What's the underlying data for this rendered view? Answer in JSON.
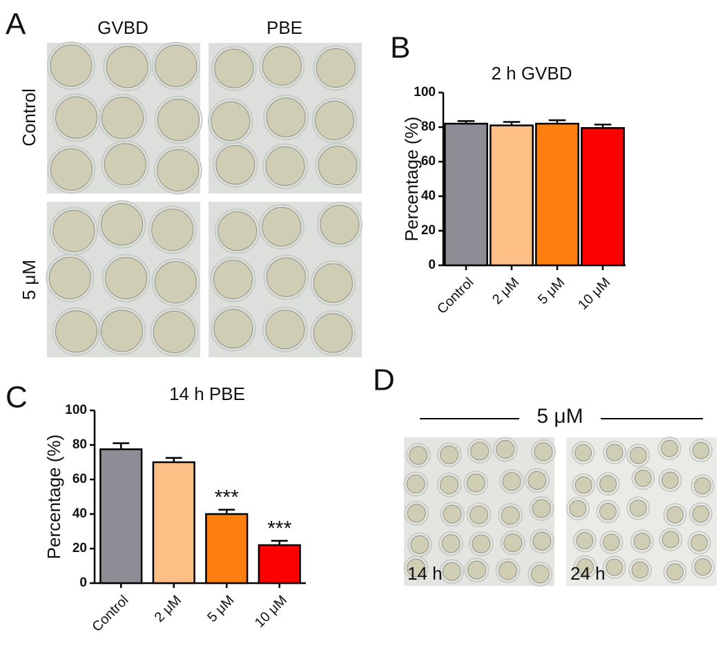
{
  "panels": {
    "A": {
      "letter": "A",
      "columns": [
        "GVBD",
        "PBE"
      ],
      "rows": [
        "Control",
        "5 μM"
      ]
    },
    "B": {
      "letter": "B"
    },
    "C": {
      "letter": "C"
    },
    "D": {
      "letter": "D",
      "condition": "5 μM",
      "images": [
        "14 h",
        "24 h"
      ]
    }
  },
  "chart_data": [
    {
      "type": "bar",
      "title": "2 h GVBD",
      "y_label": "Percentage (%)",
      "categories": [
        "Control",
        "2 μM",
        "5 μM",
        "10 μM"
      ],
      "values": [
        82,
        81,
        82,
        79.5
      ],
      "errors": [
        1.5,
        2,
        2,
        2
      ],
      "colors": [
        "#8e8c95",
        "#fdbf85",
        "#fd7f0f",
        "#fd0000"
      ],
      "ylim": [
        0,
        100
      ],
      "yticks": [
        0,
        20,
        40,
        60,
        80,
        100
      ]
    },
    {
      "type": "bar",
      "title": "14 h PBE",
      "y_label": "Percentage (%)",
      "categories": [
        "Control",
        "2 μM",
        "5 μM",
        "10 μM"
      ],
      "values": [
        77.5,
        70,
        40,
        22
      ],
      "errors": [
        3.5,
        2.5,
        2.5,
        2.5
      ],
      "significance": [
        null,
        null,
        "***",
        "***"
      ],
      "colors": [
        "#8e8c95",
        "#fdbf85",
        "#fd7f0f",
        "#fd0000"
      ],
      "ylim": [
        0,
        100
      ],
      "yticks": [
        0,
        20,
        40,
        60,
        80,
        100
      ]
    }
  ]
}
